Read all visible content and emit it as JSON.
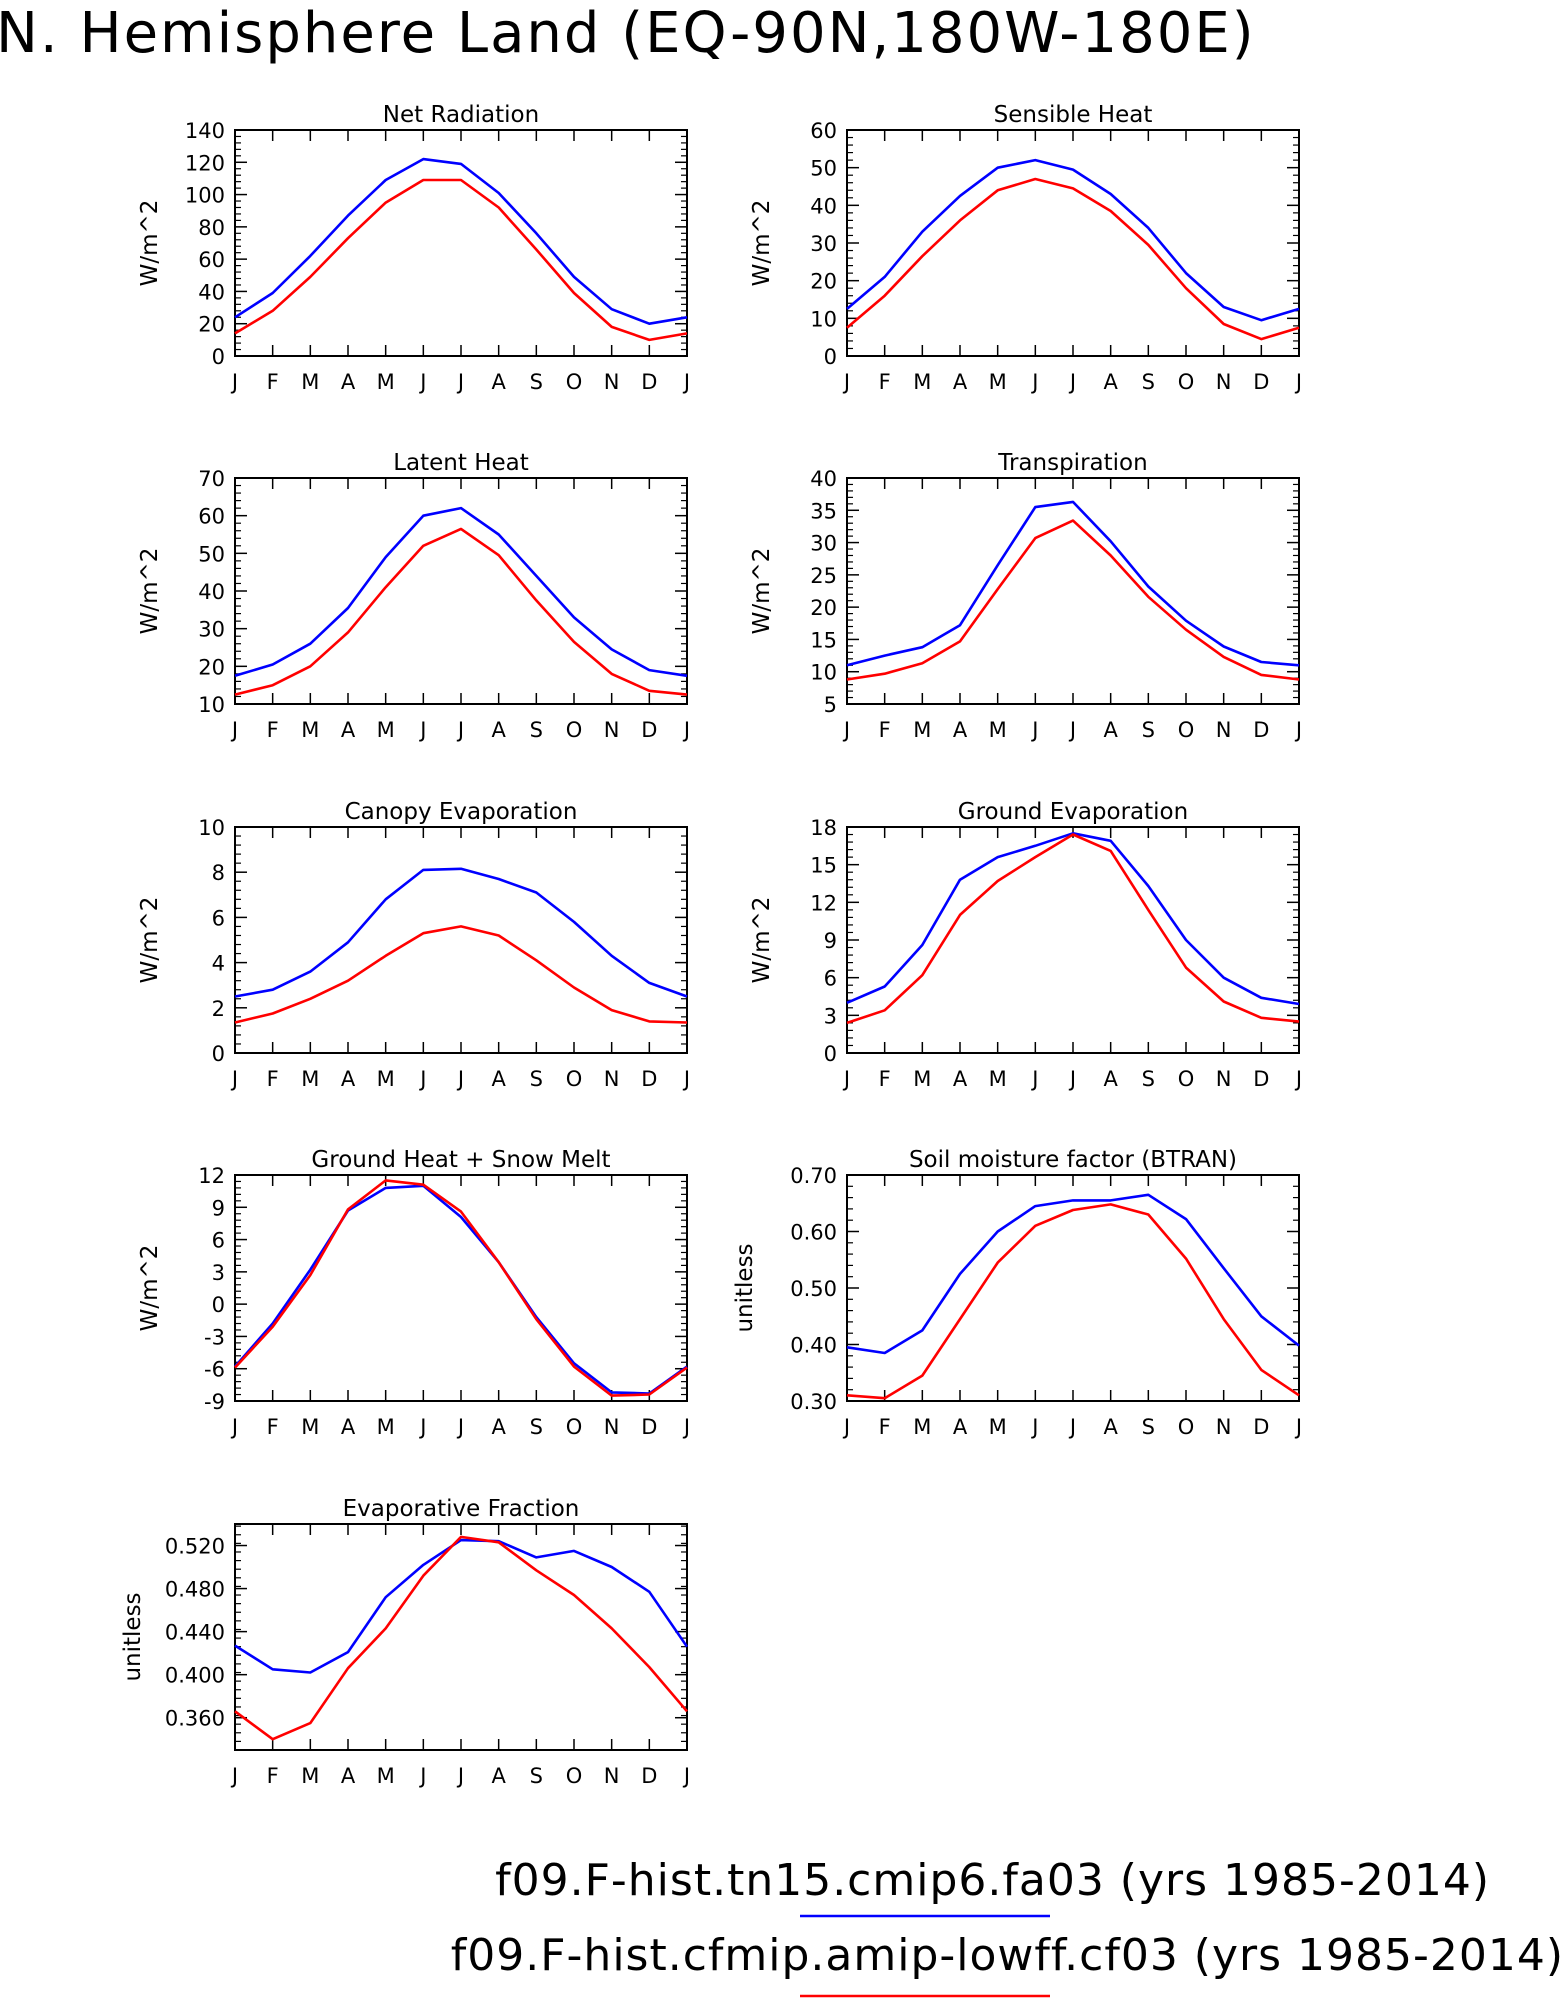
{
  "title": "N. Hemisphere Land (EQ-90N,180W-180E)",
  "colors": {
    "series1": "#0000ff",
    "series2": "#ff0000",
    "axis": "#000000"
  },
  "legend": [
    {
      "label": "f09.F-hist.tn15.cmip6.fa03 (yrs 1985-2014)",
      "color": "#0000ff"
    },
    {
      "label": "f09.F-hist.cfmip.amip-lowff.cf03 (yrs 1985-2014)",
      "color": "#ff0000"
    }
  ],
  "chart_data": [
    {
      "type": "line",
      "title": "Net Radiation",
      "ylabel": "W/m^2",
      "categories": [
        "J",
        "F",
        "M",
        "A",
        "M",
        "J",
        "J",
        "A",
        "S",
        "O",
        "N",
        "D",
        "J"
      ],
      "ylim": [
        0,
        140
      ],
      "yticks": [
        0,
        20,
        40,
        60,
        80,
        100,
        120,
        140
      ],
      "tick_decimals": 0,
      "series": [
        {
          "values": [
            24,
            39,
            62,
            87,
            109,
            122,
            119,
            101,
            76,
            49,
            29,
            20,
            24
          ],
          "color": "#0000ff"
        },
        {
          "values": [
            14,
            28,
            49,
            73,
            95,
            109,
            109,
            92,
            66,
            39,
            18,
            10,
            14
          ],
          "color": "#ff0000"
        }
      ]
    },
    {
      "type": "line",
      "title": "Sensible Heat",
      "ylabel": "W/m^2",
      "categories": [
        "J",
        "F",
        "M",
        "A",
        "M",
        "J",
        "J",
        "A",
        "S",
        "O",
        "N",
        "D",
        "J"
      ],
      "ylim": [
        0,
        60
      ],
      "yticks": [
        0,
        10,
        20,
        30,
        40,
        50,
        60
      ],
      "tick_decimals": 0,
      "series": [
        {
          "values": [
            12.5,
            21,
            33,
            42.5,
            50,
            52,
            49.5,
            43,
            34,
            22,
            13,
            9.5,
            12.5
          ],
          "color": "#0000ff"
        },
        {
          "values": [
            7.5,
            16,
            26.5,
            36,
            44,
            47,
            44.5,
            38.5,
            29.5,
            18,
            8.5,
            4.5,
            7.5
          ],
          "color": "#ff0000"
        }
      ]
    },
    {
      "type": "line",
      "title": "Latent Heat",
      "ylabel": "W/m^2",
      "categories": [
        "J",
        "F",
        "M",
        "A",
        "M",
        "J",
        "J",
        "A",
        "S",
        "O",
        "N",
        "D",
        "J"
      ],
      "ylim": [
        10,
        70
      ],
      "yticks": [
        10,
        20,
        30,
        40,
        50,
        60,
        70
      ],
      "tick_decimals": 0,
      "series": [
        {
          "values": [
            17.5,
            20.5,
            26,
            35.5,
            49,
            60,
            62,
            55,
            44,
            33,
            24.5,
            19,
            17.5
          ],
          "color": "#0000ff"
        },
        {
          "values": [
            12.5,
            15,
            20,
            29,
            41,
            52,
            56.5,
            49.5,
            37.5,
            26.5,
            18,
            13.5,
            12.5
          ],
          "color": "#ff0000"
        }
      ]
    },
    {
      "type": "line",
      "title": "Transpiration",
      "ylabel": "W/m^2",
      "categories": [
        "J",
        "F",
        "M",
        "A",
        "M",
        "J",
        "J",
        "A",
        "S",
        "O",
        "N",
        "D",
        "J"
      ],
      "ylim": [
        5,
        40
      ],
      "yticks": [
        5,
        10,
        15,
        20,
        25,
        30,
        35,
        40
      ],
      "tick_decimals": 0,
      "series": [
        {
          "values": [
            11,
            12.5,
            13.8,
            17.2,
            26.5,
            35.5,
            36.3,
            30.2,
            23.2,
            17.9,
            13.9,
            11.5,
            11
          ],
          "color": "#0000ff"
        },
        {
          "values": [
            8.8,
            9.7,
            11.3,
            14.7,
            22.8,
            30.7,
            33.4,
            28,
            21.6,
            16.5,
            12.3,
            9.5,
            8.8
          ],
          "color": "#ff0000"
        }
      ]
    },
    {
      "type": "line",
      "title": "Canopy Evaporation",
      "ylabel": "W/m^2",
      "categories": [
        "J",
        "F",
        "M",
        "A",
        "M",
        "J",
        "J",
        "A",
        "S",
        "O",
        "N",
        "D",
        "J"
      ],
      "ylim": [
        0,
        10
      ],
      "yticks": [
        0,
        2,
        4,
        6,
        8,
        10
      ],
      "tick_decimals": 0,
      "series": [
        {
          "values": [
            2.5,
            2.8,
            3.6,
            4.9,
            6.8,
            8.1,
            8.15,
            7.7,
            7.1,
            5.8,
            4.3,
            3.1,
            2.5
          ],
          "color": "#0000ff"
        },
        {
          "values": [
            1.35,
            1.75,
            2.4,
            3.2,
            4.3,
            5.3,
            5.6,
            5.2,
            4.1,
            2.9,
            1.9,
            1.4,
            1.35
          ],
          "color": "#ff0000"
        }
      ]
    },
    {
      "type": "line",
      "title": "Ground Evaporation",
      "ylabel": "W/m^2",
      "categories": [
        "J",
        "F",
        "M",
        "A",
        "M",
        "J",
        "J",
        "A",
        "S",
        "O",
        "N",
        "D",
        "J"
      ],
      "ylim": [
        0,
        18
      ],
      "yticks": [
        0,
        3,
        6,
        9,
        12,
        15,
        18
      ],
      "tick_decimals": 0,
      "series": [
        {
          "values": [
            4,
            5.3,
            8.6,
            13.8,
            15.6,
            16.5,
            17.5,
            16.9,
            13.3,
            9,
            6,
            4.4,
            3.9
          ],
          "color": "#0000ff"
        },
        {
          "values": [
            2.4,
            3.4,
            6.2,
            11,
            13.7,
            15.6,
            17.4,
            16.1,
            11.4,
            6.8,
            4.1,
            2.8,
            2.5
          ],
          "color": "#ff0000"
        }
      ]
    },
    {
      "type": "line",
      "title": "Ground Heat + Snow Melt",
      "ylabel": "W/m^2",
      "categories": [
        "J",
        "F",
        "M",
        "A",
        "M",
        "J",
        "J",
        "A",
        "S",
        "O",
        "N",
        "D",
        "J"
      ],
      "ylim": [
        -9,
        12
      ],
      "yticks": [
        -9,
        -6,
        -3,
        0,
        3,
        6,
        9,
        12
      ],
      "tick_decimals": 0,
      "series": [
        {
          "values": [
            -5.8,
            -1.8,
            3.2,
            8.7,
            10.8,
            11,
            8.1,
            3.9,
            -1.2,
            -5.5,
            -8.2,
            -8.3,
            -5.8
          ],
          "color": "#0000ff"
        },
        {
          "values": [
            -5.9,
            -2.1,
            2.7,
            8.8,
            11.5,
            11.1,
            8.6,
            3.9,
            -1.4,
            -5.8,
            -8.5,
            -8.4,
            -5.9
          ],
          "color": "#ff0000"
        }
      ]
    },
    {
      "type": "line",
      "title": "Soil moisture factor (BTRAN)",
      "ylabel": "unitless",
      "categories": [
        "J",
        "F",
        "M",
        "A",
        "M",
        "J",
        "J",
        "A",
        "S",
        "O",
        "N",
        "D",
        "J"
      ],
      "ylim": [
        0.3,
        0.7
      ],
      "yticks": [
        0.3,
        0.4,
        0.5,
        0.6,
        0.7
      ],
      "tick_decimals": 2,
      "series": [
        {
          "values": [
            0.395,
            0.385,
            0.425,
            0.525,
            0.6,
            0.645,
            0.655,
            0.655,
            0.665,
            0.622,
            0.535,
            0.45,
            0.398
          ],
          "color": "#0000ff"
        },
        {
          "values": [
            0.31,
            0.305,
            0.345,
            0.445,
            0.545,
            0.61,
            0.638,
            0.648,
            0.63,
            0.552,
            0.445,
            0.355,
            0.31
          ],
          "color": "#ff0000"
        }
      ]
    },
    {
      "type": "line",
      "title": "Evaporative Fraction",
      "ylabel": "unitless",
      "categories": [
        "J",
        "F",
        "M",
        "A",
        "M",
        "J",
        "J",
        "A",
        "S",
        "O",
        "N",
        "D",
        "J"
      ],
      "ylim": [
        0.33,
        0.54
      ],
      "yticks": [
        0.36,
        0.4,
        0.44,
        0.48,
        0.52
      ],
      "tick_decimals": 3,
      "series": [
        {
          "values": [
            0.427,
            0.405,
            0.402,
            0.421,
            0.472,
            0.502,
            0.525,
            0.524,
            0.509,
            0.515,
            0.5,
            0.477,
            0.426
          ],
          "color": "#0000ff"
        },
        {
          "values": [
            0.366,
            0.34,
            0.355,
            0.406,
            0.443,
            0.492,
            0.528,
            0.523,
            0.497,
            0.474,
            0.443,
            0.407,
            0.366
          ],
          "color": "#ff0000"
        }
      ]
    }
  ]
}
